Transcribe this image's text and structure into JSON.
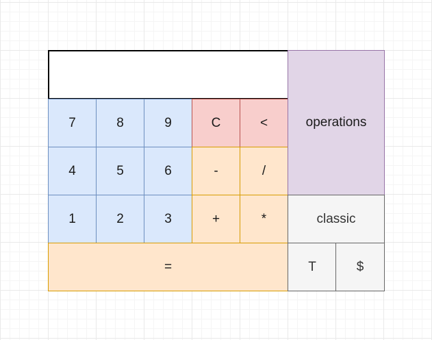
{
  "display": {
    "value": ""
  },
  "keys": {
    "k7": "7",
    "k8": "8",
    "k9": "9",
    "clear": "C",
    "backspace": "<",
    "k4": "4",
    "k5": "5",
    "k6": "6",
    "minus": "-",
    "divide": "/",
    "k1": "1",
    "k2": "2",
    "k3": "3",
    "plus": "+",
    "multiply": "*",
    "equals": "="
  },
  "panels": {
    "operations": "operations",
    "classic": "classic",
    "t": "T",
    "dollar": "$"
  },
  "colors": {
    "number_fill": "#dae8fc",
    "number_stroke": "#6c8ebf",
    "control_fill": "#f8cecc",
    "control_stroke": "#b85450",
    "operator_fill": "#ffe6cc",
    "operator_stroke": "#d79b00",
    "operations_fill": "#e1d5e7",
    "operations_stroke": "#9673a6",
    "mode_fill": "#f5f5f5",
    "mode_stroke": "#666666"
  }
}
